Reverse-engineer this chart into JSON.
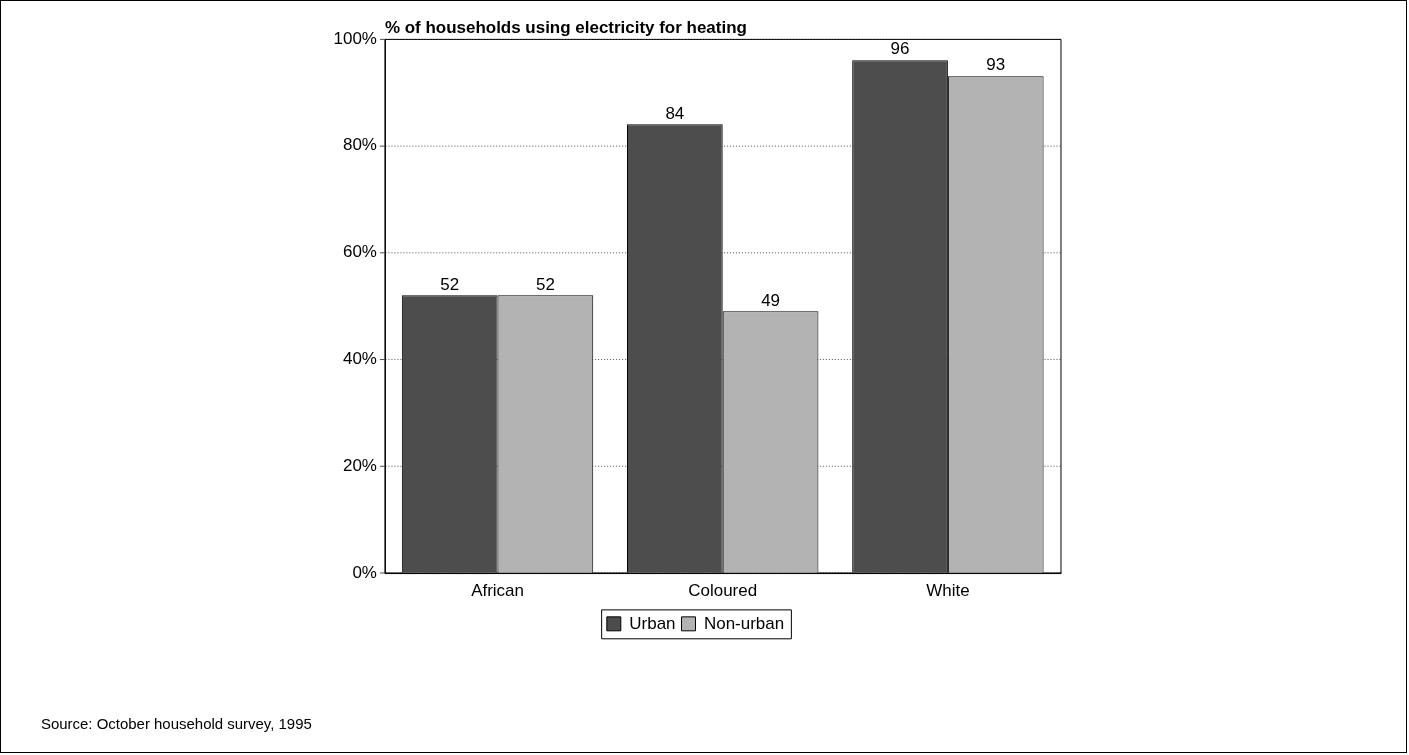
{
  "chart_data": {
    "type": "bar",
    "title": "% of households using electricity for heating",
    "categories": [
      "African",
      "Coloured",
      "White"
    ],
    "series": [
      {
        "name": "Urban",
        "color": "#4d4d4d",
        "values": [
          52,
          84,
          96
        ]
      },
      {
        "name": "Non-urban",
        "color": "#b3b3b3",
        "values": [
          52,
          49,
          93
        ]
      }
    ],
    "ylim": [
      0,
      100
    ],
    "yticks": [
      {
        "value": 0,
        "label": "0%"
      },
      {
        "value": 20,
        "label": "20%"
      },
      {
        "value": 40,
        "label": "40%"
      },
      {
        "value": 60,
        "label": "60%"
      },
      {
        "value": 80,
        "label": "80%"
      },
      {
        "value": 100,
        "label": "100%"
      }
    ],
    "grid": "y",
    "legend": "bottom",
    "data_labels": true,
    "annotations": [
      "Source: October household survey, 1995"
    ]
  }
}
